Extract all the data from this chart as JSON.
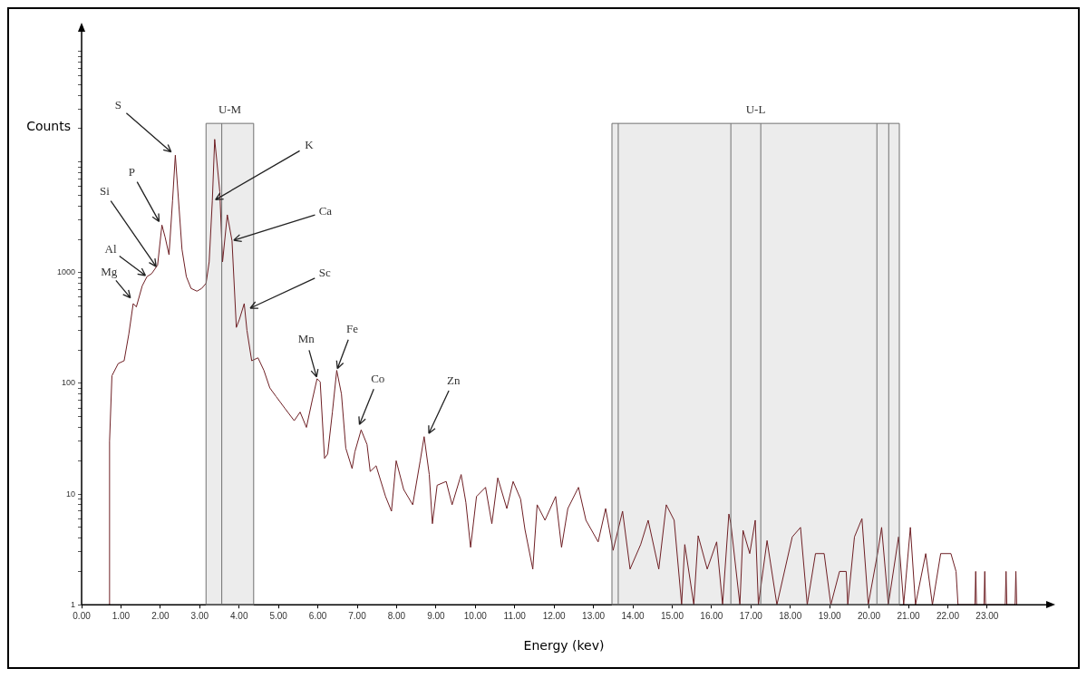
{
  "chart_data": {
    "type": "line",
    "xlabel": "Energy (kev)",
    "ylabel": "Counts",
    "color": "#6e1f24",
    "log": "y",
    "grid": false,
    "legend": false,
    "xlim": [
      0,
      24.5
    ],
    "xticks": [
      {
        "value": 0,
        "label": "0.00"
      },
      {
        "value": 1,
        "label": "1.00"
      },
      {
        "value": 2,
        "label": "2.00"
      },
      {
        "value": 3,
        "label": "3.00"
      },
      {
        "value": 4,
        "label": "4.00"
      },
      {
        "value": 5,
        "label": "5.00"
      },
      {
        "value": 6,
        "label": "6.00"
      },
      {
        "value": 7,
        "label": "7.00"
      },
      {
        "value": 8,
        "label": "8.00"
      },
      {
        "value": 9,
        "label": "9.00"
      },
      {
        "value": 10,
        "label": "10.00"
      },
      {
        "value": 11,
        "label": "11.00"
      },
      {
        "value": 12,
        "label": "12.00"
      },
      {
        "value": 13,
        "label": "13.00"
      },
      {
        "value": 14,
        "label": "14.00"
      },
      {
        "value": 15,
        "label": "15.00"
      },
      {
        "value": 16,
        "label": "16.00"
      },
      {
        "value": 17,
        "label": "17.00"
      },
      {
        "value": 18,
        "label": "18.00"
      },
      {
        "value": 19,
        "label": "19.00"
      },
      {
        "value": 20,
        "label": "20.00"
      },
      {
        "value": 21,
        "label": "21.00"
      },
      {
        "value": 22,
        "label": "22.00"
      },
      {
        "value": 23,
        "label": "23.00"
      }
    ],
    "ylim": [
      1,
      150000
    ],
    "yticks": [
      1,
      {
        "value": 2,
        "label": null
      },
      {
        "value": 3,
        "label": null
      },
      {
        "value": 4,
        "label": null
      },
      {
        "value": 5,
        "label": null
      },
      {
        "value": 6,
        "label": null
      },
      {
        "value": 7,
        "label": null
      },
      {
        "value": 8,
        "label": null
      },
      {
        "value": 9,
        "label": null
      },
      10,
      {
        "value": 20,
        "label": null
      },
      {
        "value": 30,
        "label": null
      },
      {
        "value": 40,
        "label": null
      },
      {
        "value": 50,
        "label": null
      },
      {
        "value": 60,
        "label": null
      },
      {
        "value": 70,
        "label": null
      },
      {
        "value": 80,
        "label": null
      },
      {
        "value": 90,
        "label": null
      },
      100,
      {
        "value": 200,
        "label": null
      },
      {
        "value": 300,
        "label": null
      },
      {
        "value": 400,
        "label": null
      },
      {
        "value": 500,
        "label": null
      },
      {
        "value": 600,
        "label": null
      },
      {
        "value": 700,
        "label": null
      },
      {
        "value": 800,
        "label": null
      },
      {
        "value": 900,
        "label": null
      },
      1000,
      {
        "value": 2000,
        "label": null
      },
      {
        "value": 3000,
        "label": null
      },
      {
        "value": 4000,
        "label": null
      },
      {
        "value": 5000,
        "label": null
      },
      {
        "value": 6000,
        "label": null
      },
      {
        "value": 7000,
        "label": null
      },
      {
        "value": 8000,
        "label": null
      },
      {
        "value": 9000,
        "label": null
      },
      {
        "value": 10000,
        "label": null
      },
      {
        "value": 20000,
        "label": null
      },
      {
        "value": 30000,
        "label": null
      },
      {
        "value": 40000,
        "label": null
      },
      {
        "value": 50000,
        "label": null
      },
      {
        "value": 60000,
        "label": null
      },
      {
        "value": 70000,
        "label": null
      },
      {
        "value": 80000,
        "label": null
      },
      {
        "value": 90000,
        "label": null
      },
      {
        "value": 100000,
        "label": null
      }
    ],
    "x": [
      0.7,
      0.71,
      0.77,
      0.93,
      1.08,
      1.2,
      1.31,
      1.39,
      1.54,
      1.66,
      1.78,
      1.93,
      2.04,
      2.12,
      2.22,
      2.31,
      2.38,
      2.55,
      2.66,
      2.78,
      2.93,
      3.05,
      3.16,
      3.24,
      3.32,
      3.38,
      3.51,
      3.58,
      3.7,
      3.82,
      3.93,
      4.01,
      4.13,
      4.2,
      4.32,
      4.48,
      4.63,
      4.78,
      4.94,
      5.17,
      5.4,
      5.55,
      5.71,
      5.86,
      5.98,
      6.06,
      6.17,
      6.25,
      6.37,
      6.48,
      6.6,
      6.71,
      6.87,
      6.94,
      7.1,
      7.25,
      7.33,
      7.48,
      7.72,
      7.87,
      7.99,
      8.18,
      8.41,
      8.6,
      8.7,
      8.83,
      8.91,
      9.03,
      9.26,
      9.41,
      9.64,
      9.76,
      9.88,
      10.03,
      10.26,
      10.42,
      10.57,
      10.8,
      10.96,
      11.15,
      11.26,
      11.46,
      11.57,
      11.77,
      12.04,
      12.19,
      12.35,
      12.62,
      12.81,
      13.12,
      13.31,
      13.5,
      13.74,
      13.93,
      14.2,
      14.39,
      14.66,
      14.85,
      15.05,
      15.24,
      15.32,
      15.55,
      15.66,
      15.89,
      16.13,
      16.28,
      16.44,
      16.49,
      16.72,
      16.8,
      16.97,
      17.11,
      17.19,
      17.41,
      17.66,
      18.05,
      18.26,
      18.43,
      18.64,
      18.86,
      19.03,
      19.25,
      19.42,
      19.46,
      19.63,
      19.82,
      19.98,
      20.23,
      20.32,
      20.49,
      20.75,
      20.88,
      21.05,
      21.18,
      21.44,
      21.61,
      21.82,
      22.08,
      22.21,
      22.26,
      22.69,
      22.71,
      22.73,
      22.92,
      22.94,
      22.96,
      23.46,
      23.48,
      23.5,
      23.71,
      23.73,
      23.75
    ],
    "values": [
      1,
      30,
      117,
      151,
      160,
      280,
      525,
      490,
      760,
      920,
      980,
      1170,
      2690,
      2100,
      1450,
      4470,
      11500,
      1620,
      920,
      720,
      680,
      720,
      800,
      1250,
      4450,
      16000,
      5400,
      1250,
      3330,
      1940,
      320,
      380,
      525,
      300,
      160,
      170,
      131,
      91,
      76,
      59,
      46,
      55,
      40,
      71,
      110,
      103,
      21,
      23,
      55,
      131,
      80,
      26,
      17,
      24,
      38,
      28,
      16,
      18,
      9.5,
      7,
      20,
      11,
      8,
      20,
      33,
      15,
      5.4,
      12,
      13,
      8,
      15,
      8.4,
      3.3,
      9.5,
      11.5,
      5.4,
      14,
      7.4,
      13,
      9,
      4.8,
      2.1,
      8,
      5.8,
      9.5,
      3.3,
      7.4,
      11.5,
      5.8,
      3.7,
      7.4,
      3.1,
      7,
      2.1,
      3.5,
      5.8,
      2.1,
      8,
      5.8,
      1,
      3.5,
      1,
      4.2,
      2.1,
      3.7,
      1,
      6.6,
      5.4,
      1,
      4.7,
      2.9,
      5.8,
      1,
      3.8,
      1,
      4.1,
      5,
      1,
      2.9,
      2.9,
      1,
      2,
      2,
      1,
      4.1,
      6,
      1,
      3.1,
      5,
      1,
      4.1,
      1,
      5,
      1,
      2.9,
      1,
      2.9,
      2.9,
      2,
      1,
      1,
      2,
      1,
      1,
      2,
      1,
      1,
      2,
      1,
      1,
      2,
      1
    ],
    "bands": [
      {
        "axis": "x",
        "from": 3.16,
        "to": 4.37,
        "label": "U-M",
        "color": "#ececec"
      },
      {
        "axis": "x",
        "from": 13.47,
        "to": 20.77,
        "label": "U-L",
        "color": "#ececec"
      }
    ],
    "ref_lines": [
      {
        "axis": "x",
        "value": 3.56
      },
      {
        "axis": "x",
        "value": 13.63
      },
      {
        "axis": "x",
        "value": 16.49
      },
      {
        "axis": "x",
        "value": 17.25
      },
      {
        "axis": "x",
        "value": 20.2
      },
      {
        "axis": "x",
        "value": 20.5
      }
    ],
    "annotations": [
      {
        "text": "Mg",
        "x": 1.27,
        "y": 575
      },
      {
        "text": "Al",
        "x": 1.66,
        "y": 920
      },
      {
        "text": "Si",
        "x": 1.92,
        "y": 1100
      },
      {
        "text": "P",
        "x": 1.99,
        "y": 2800
      },
      {
        "text": "S",
        "x": 2.31,
        "y": 12000
      },
      {
        "text": "K",
        "x": 3.36,
        "y": 4470
      },
      {
        "text": "Ca",
        "x": 3.82,
        "y": 1940
      },
      {
        "text": "Sc",
        "x": 4.24,
        "y": 470
      },
      {
        "text": "Mn",
        "x": 5.98,
        "y": 110
      },
      {
        "text": "Fe",
        "x": 6.48,
        "y": 131
      },
      {
        "text": "Co",
        "x": 7.04,
        "y": 41
      },
      {
        "text": "Zn",
        "x": 8.8,
        "y": 34
      }
    ]
  }
}
